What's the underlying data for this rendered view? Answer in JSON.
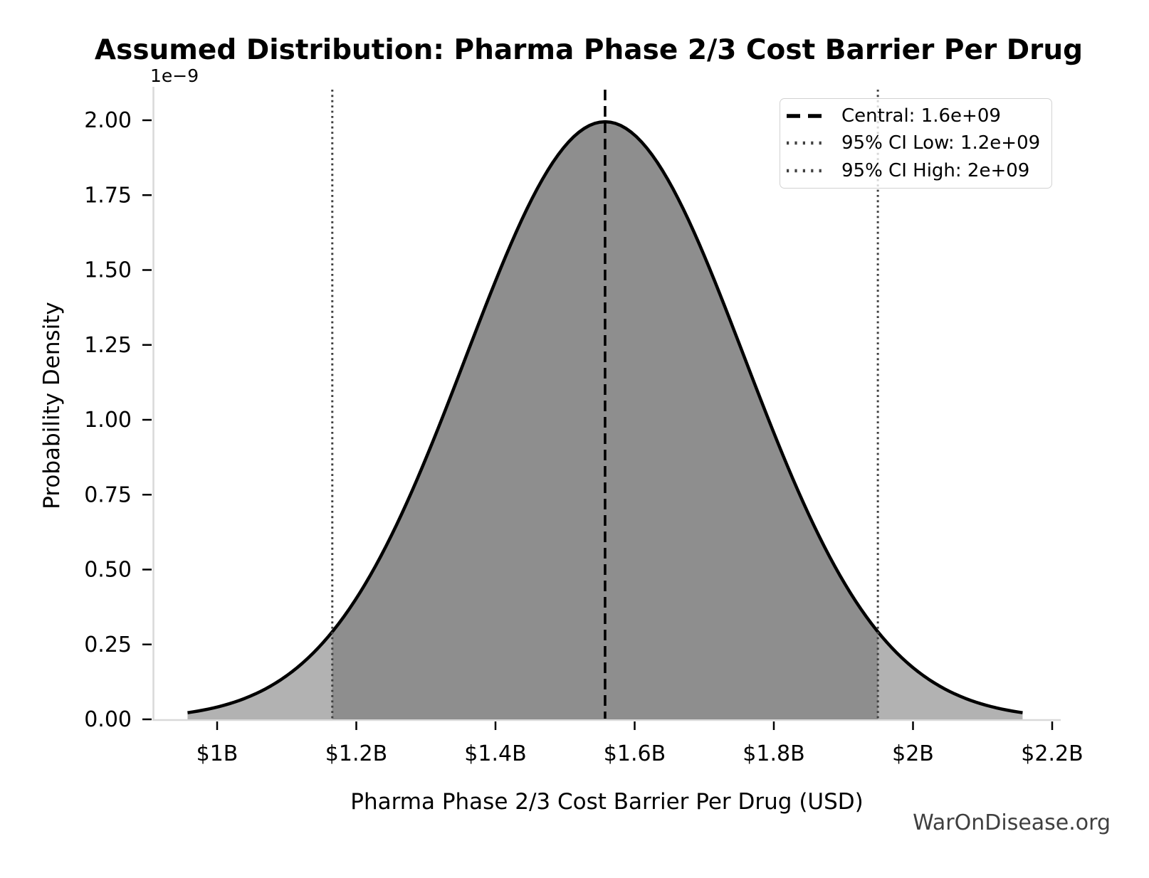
{
  "figure": {
    "watermark": "WarOnDisease.org"
  },
  "chart_data": {
    "type": "area",
    "title": "Assumed Distribution: Pharma Phase 2/3 Cost Barrier Per Drug",
    "xlabel": "Pharma Phase 2/3 Cost Barrier Per Drug (USD)",
    "ylabel": "Probability Density",
    "y_scale_offset_label": "1e−9",
    "x_unit": "USD (billions)",
    "xlim_b": [
      0.908,
      2.212
    ],
    "ylim_1e9": [
      0,
      2.11
    ],
    "grid": false,
    "xticks": {
      "values": [
        1.0,
        1.2,
        1.4,
        1.6,
        1.8,
        2.0,
        2.2
      ],
      "labels": [
        "$1B",
        "$1.2B",
        "$1.4B",
        "$1.6B",
        "$1.8B",
        "$2B",
        "$2.2B"
      ]
    },
    "yticks": {
      "values": [
        0,
        0.25,
        0.5,
        0.75,
        1.0,
        1.25,
        1.5,
        1.75,
        2.0
      ],
      "labels": [
        "0.00",
        "0.25",
        "0.50",
        "0.75",
        "1.00",
        "1.25",
        "1.50",
        "1.75",
        "2.00"
      ],
      "unit_multiplier": "1e-9"
    },
    "curve": {
      "shape": "gaussian",
      "mean_b": 1.5575,
      "sigma_b": 0.2,
      "peak_density_1e9": 1.995,
      "clip_sigma": 3
    },
    "vlines": {
      "central_b": 1.5575,
      "ci_low_b": 1.1655,
      "ci_high_b": 1.9495
    },
    "stated_values": {
      "central": "1.6e+09",
      "ci_low": "1.2e+09",
      "ci_high": "2e+09"
    },
    "legend": {
      "position": "upper right",
      "items": [
        {
          "label": "Central: 1.6e+09",
          "style": "dashed-black"
        },
        {
          "label": "95% CI Low: 1.2e+09",
          "style": "dotted-gray"
        },
        {
          "label": "95% CI High: 2e+09",
          "style": "dotted-gray"
        }
      ]
    },
    "colors": {
      "background": "#ffffff",
      "curve": "#000000",
      "fill_central": "#8e8e8e",
      "fill_tail": "#b2b2b2",
      "central_line": "#000000",
      "ci_line": "#3f3f3f",
      "spine": "#d9d9d9",
      "tick": "#000000",
      "text": "#000000",
      "watermark": "#3f3f3f",
      "legend_border": "#d2d2d2"
    }
  }
}
